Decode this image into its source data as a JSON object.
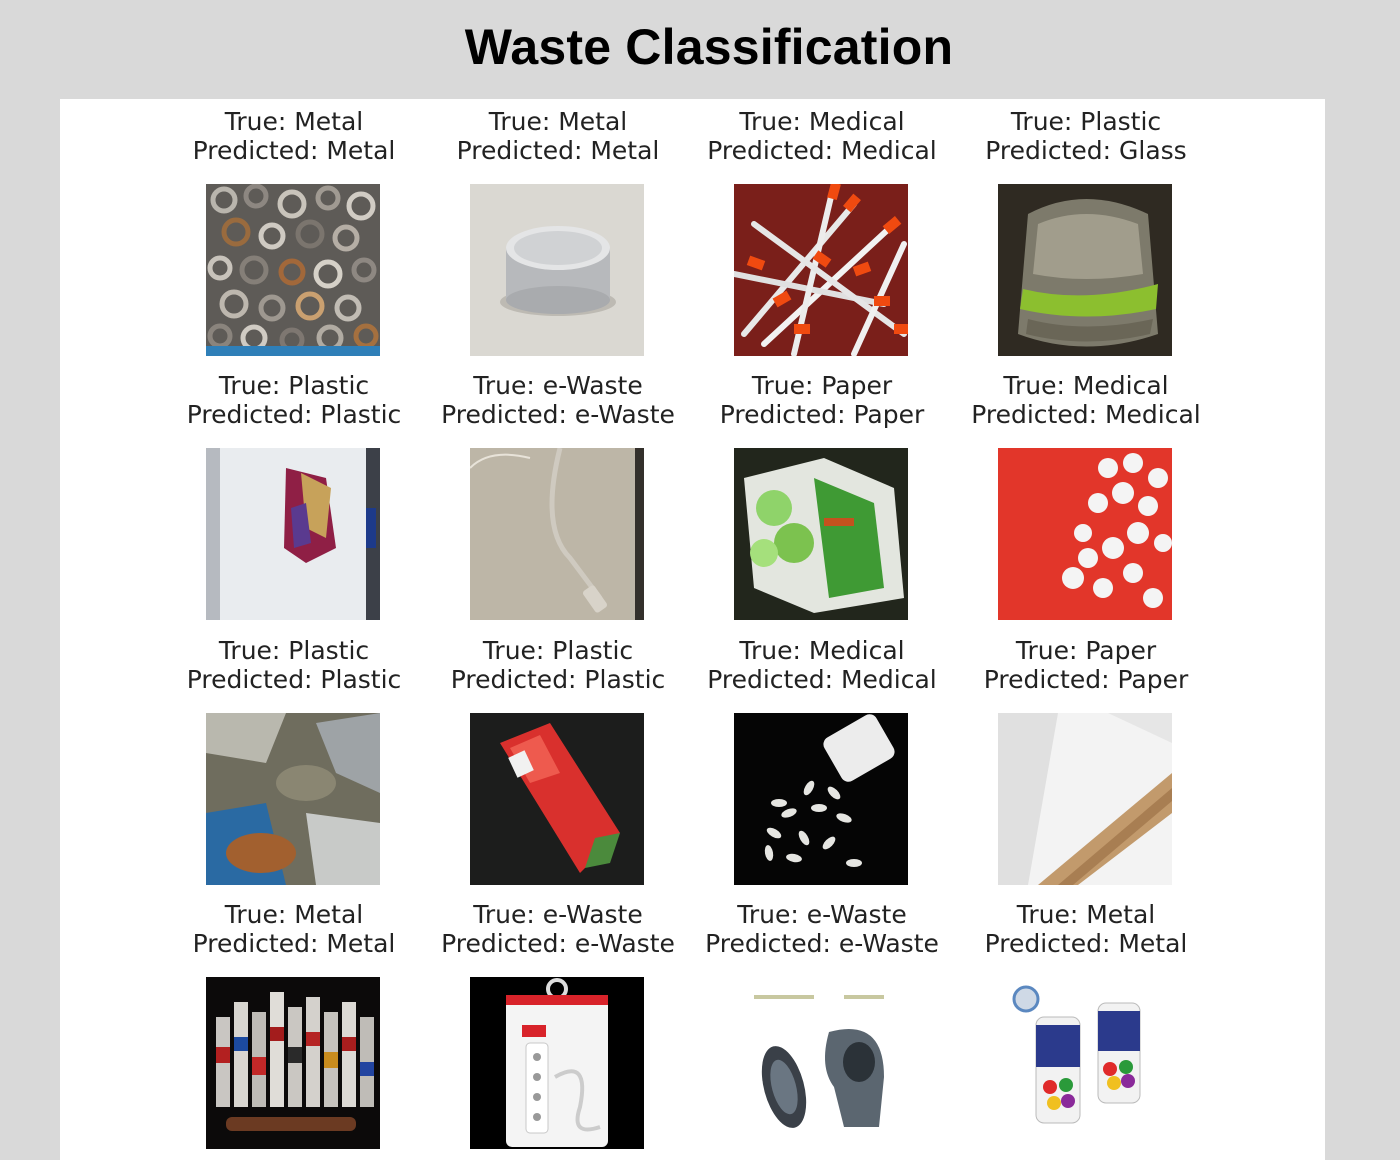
{
  "title": "Waste Classification",
  "items": [
    {
      "true_label": "True: Metal",
      "pred_label": "Predicted: Metal",
      "image": "scrap-metal-pile-image"
    },
    {
      "true_label": "True: Metal",
      "pred_label": "Predicted: Metal",
      "image": "metal-tin-can-image"
    },
    {
      "true_label": "True: Medical",
      "pred_label": "Predicted: Medical",
      "image": "syringes-image"
    },
    {
      "true_label": "True: Plastic",
      "pred_label": "Predicted: Glass",
      "image": "dirty-plastic-bottle-image"
    },
    {
      "true_label": "True: Plastic",
      "pred_label": "Predicted: Plastic",
      "image": "plastic-bag-tray-image"
    },
    {
      "true_label": "True: e-Waste",
      "pred_label": "Predicted: e-Waste",
      "image": "cable-image"
    },
    {
      "true_label": "True: Paper",
      "pred_label": "Predicted: Paper",
      "image": "paper-carton-image"
    },
    {
      "true_label": "True: Medical",
      "pred_label": "Predicted: Medical",
      "image": "pills-on-red-image"
    },
    {
      "true_label": "True: Plastic",
      "pred_label": "Predicted: Plastic",
      "image": "plastic-waste-pile-image"
    },
    {
      "true_label": "True: Plastic",
      "pred_label": "Predicted: Plastic",
      "image": "red-plastic-wrapper-image"
    },
    {
      "true_label": "True: Medical",
      "pred_label": "Predicted: Medical",
      "image": "spilled-pills-image"
    },
    {
      "true_label": "True: Paper",
      "pred_label": "Predicted: Paper",
      "image": "paper-roll-tube-image"
    },
    {
      "true_label": "True: Metal",
      "pred_label": "Predicted: Metal",
      "image": "aluminum-cans-image"
    },
    {
      "true_label": "True: e-Waste",
      "pred_label": "Predicted: e-Waste",
      "image": "power-strip-package-image"
    },
    {
      "true_label": "True: e-Waste",
      "pred_label": "Predicted: e-Waste",
      "image": "hard-drive-parts-image"
    },
    {
      "true_label": "True: Metal",
      "pred_label": "Predicted: Metal",
      "image": "spray-paint-cans-image"
    }
  ],
  "colors": {
    "background": "#d9d9d9",
    "panel": "#ffffff",
    "title": "#000000",
    "caption": "#222222"
  }
}
